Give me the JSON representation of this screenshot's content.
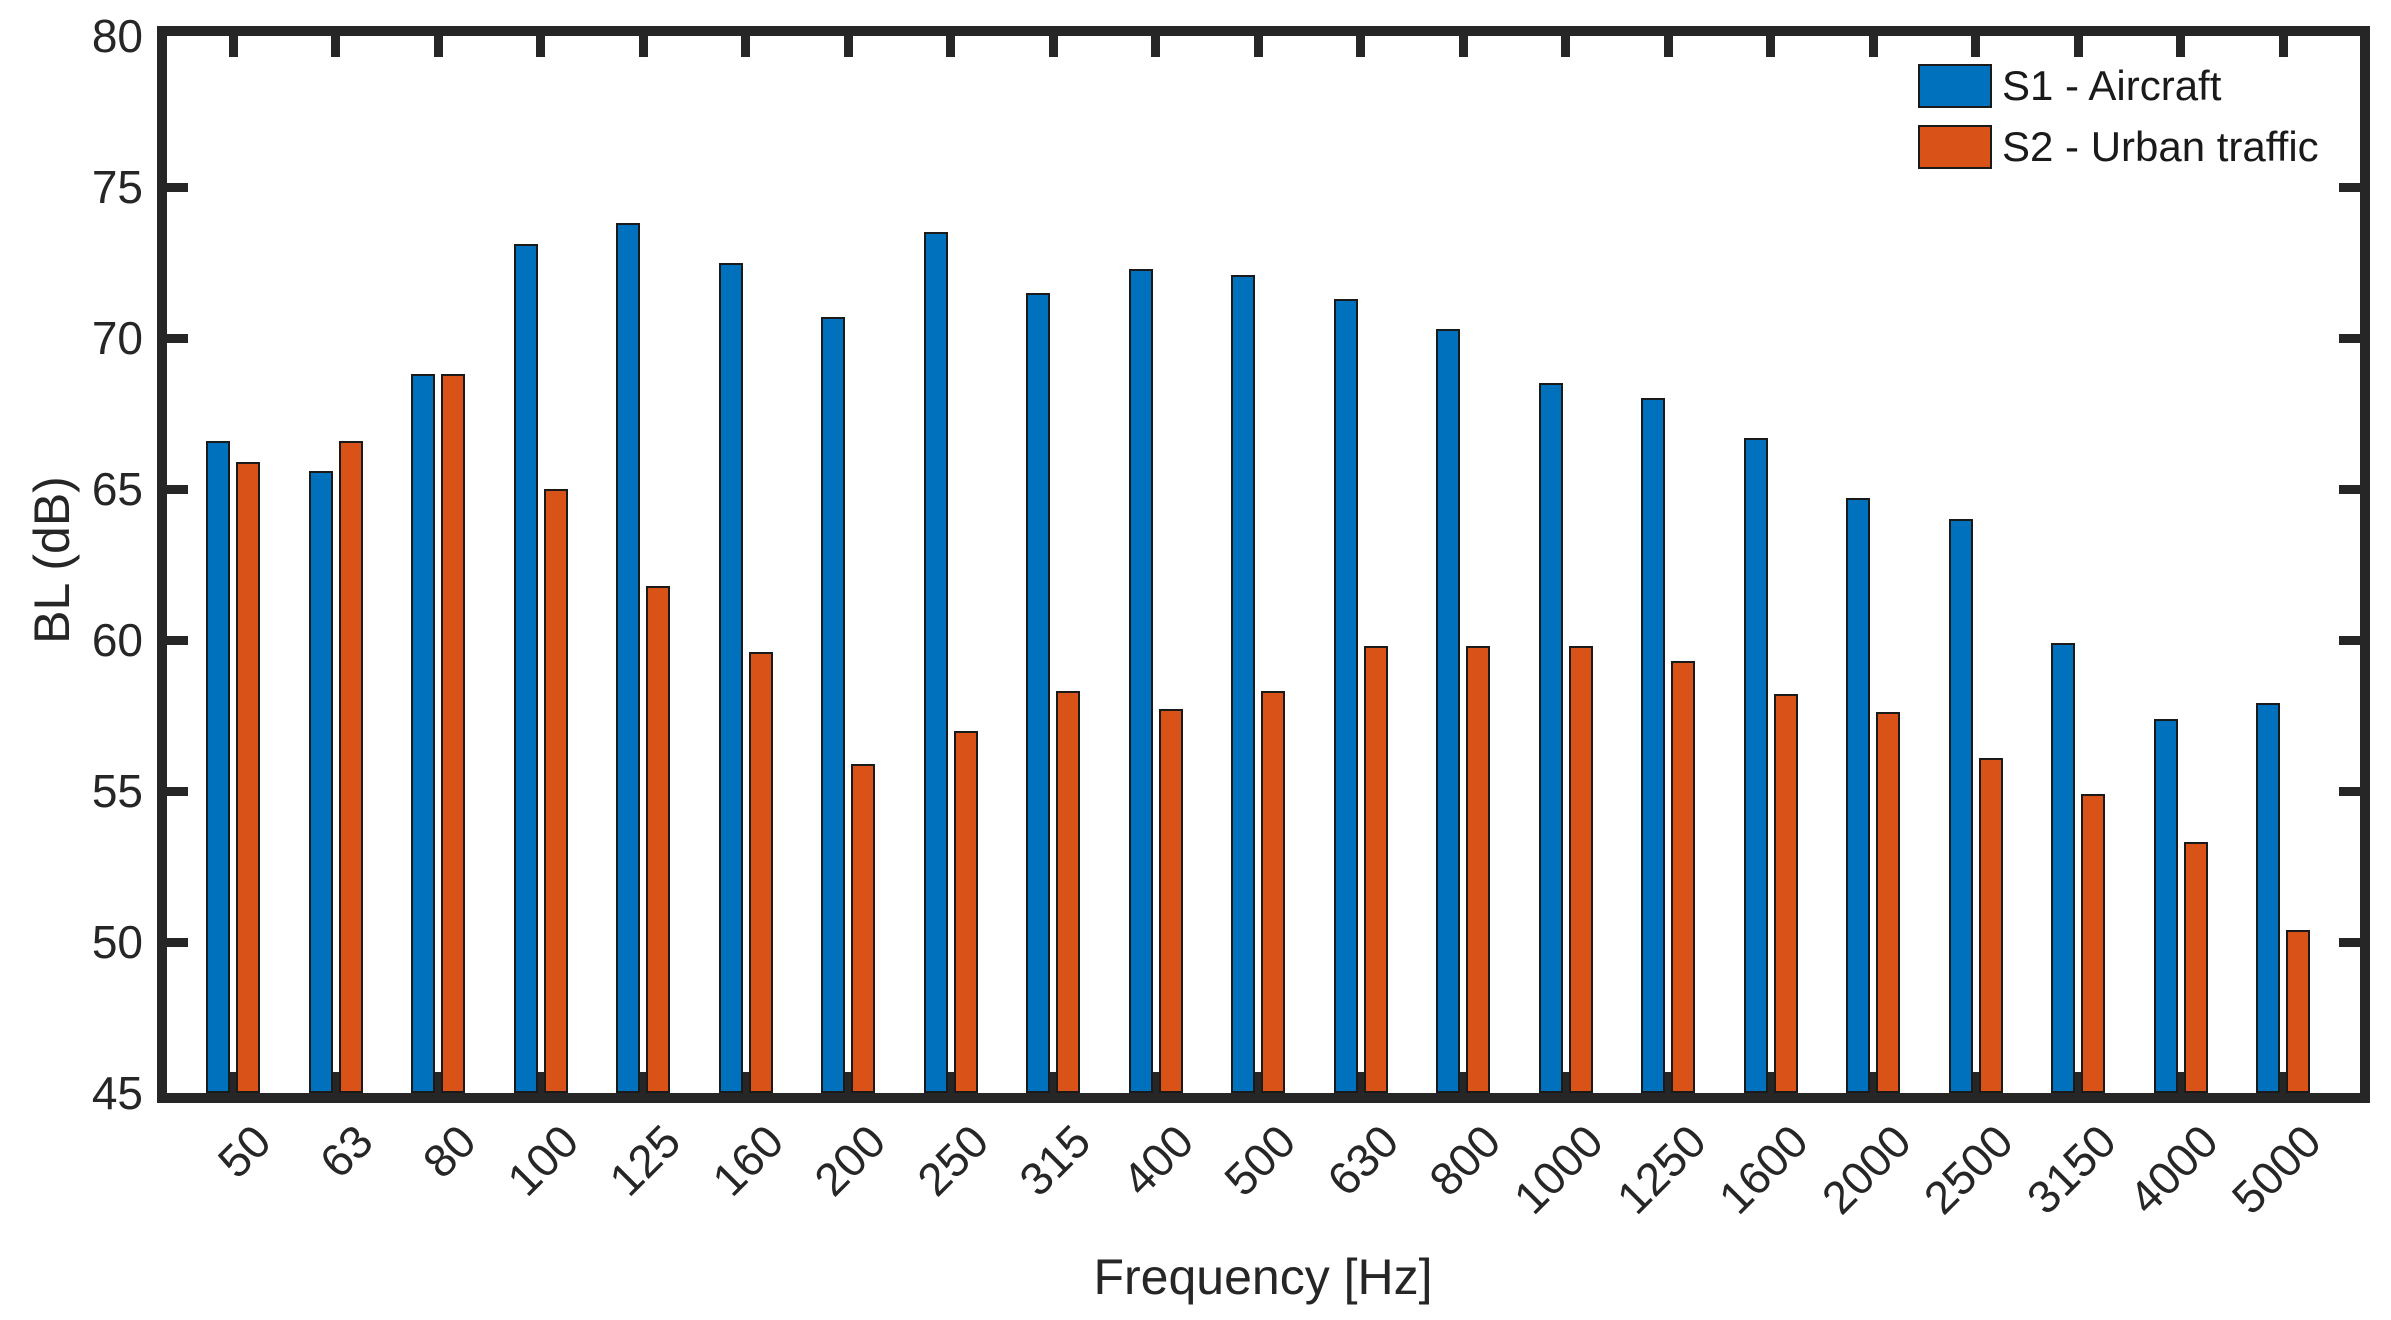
{
  "chart_data": {
    "type": "bar",
    "title": "",
    "xlabel": "Frequency [Hz]",
    "ylabel": "BL (dB)",
    "categories": [
      "50",
      "63",
      "80",
      "100",
      "125",
      "160",
      "200",
      "250",
      "315",
      "400",
      "500",
      "630",
      "800",
      "1000",
      "1250",
      "1600",
      "2000",
      "2500",
      "3150",
      "4000",
      "5000"
    ],
    "series": [
      {
        "name": "S1 - Aircraft",
        "color": "#0072BD",
        "values": [
          66.6,
          65.6,
          68.8,
          73.1,
          73.8,
          72.5,
          70.7,
          73.5,
          71.5,
          72.3,
          72.1,
          71.3,
          70.3,
          68.5,
          68.0,
          66.7,
          64.7,
          64.0,
          59.9,
          57.4,
          57.9
        ]
      },
      {
        "name": "S2 - Urban traffic",
        "color": "#D95319",
        "values": [
          65.9,
          66.6,
          68.8,
          65.0,
          61.8,
          59.6,
          55.9,
          57.0,
          58.3,
          57.7,
          58.3,
          59.8,
          59.8,
          59.8,
          59.3,
          58.2,
          57.6,
          56.1,
          54.9,
          53.3,
          50.4
        ]
      }
    ],
    "ylim": [
      45,
      80
    ],
    "yticks": [
      45,
      50,
      55,
      60,
      65,
      70,
      75,
      80
    ],
    "grid": false,
    "legend_position": "top-right",
    "axis_color": "#262626",
    "bar_edge_color": "#1a1a1a"
  }
}
